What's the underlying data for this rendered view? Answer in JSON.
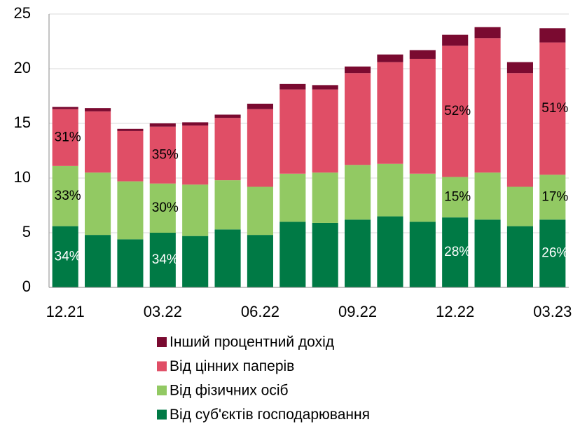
{
  "chart_data": {
    "type": "stacked_bar",
    "categories": [
      "12.21",
      null,
      null,
      "03.22",
      null,
      null,
      "06.22",
      null,
      null,
      "09.22",
      null,
      null,
      "12.22",
      null,
      null,
      "03.23"
    ],
    "series": [
      {
        "name": "Від суб'єктів господарювання",
        "color": "#007a45",
        "label_color": "#ffffff",
        "values": [
          5.6,
          4.8,
          4.4,
          5.0,
          4.7,
          5.3,
          4.8,
          6.0,
          5.9,
          6.2,
          6.5,
          6.0,
          6.4,
          6.2,
          5.6,
          6.2
        ]
      },
      {
        "name": "Від фізичних осіб",
        "color": "#92c963",
        "label_color": "#000000",
        "values": [
          5.5,
          5.7,
          5.3,
          4.5,
          4.7,
          4.5,
          4.4,
          4.4,
          4.6,
          5.0,
          4.8,
          4.4,
          3.7,
          4.3,
          3.6,
          4.1
        ]
      },
      {
        "name": "Від цінних паперів",
        "color": "#e04e66",
        "label_color": "#000000",
        "values": [
          5.2,
          5.6,
          4.6,
          5.2,
          5.4,
          5.7,
          7.1,
          7.7,
          7.6,
          8.4,
          9.3,
          10.5,
          12.0,
          12.3,
          10.4,
          12.1
        ]
      },
      {
        "name": "Інший процентний дохід",
        "color": "#7a0a30",
        "label_color": "#000000",
        "values": [
          0.2,
          0.3,
          0.2,
          0.3,
          0.3,
          0.3,
          0.5,
          0.5,
          0.4,
          0.6,
          0.7,
          0.8,
          1.0,
          1.0,
          1.0,
          1.3
        ]
      }
    ],
    "annotations": [
      {
        "series": 0,
        "category": "12.21",
        "text": "34%"
      },
      {
        "series": 1,
        "category": "12.21",
        "text": "33%"
      },
      {
        "series": 2,
        "category": "12.21",
        "text": "31%"
      },
      {
        "series": 0,
        "category": "03.22",
        "text": "34%"
      },
      {
        "series": 1,
        "category": "03.22",
        "text": "30%"
      },
      {
        "series": 2,
        "category": "03.22",
        "text": "35%"
      },
      {
        "series": 0,
        "category": "12.22",
        "text": "28%"
      },
      {
        "series": 1,
        "category": "12.22",
        "text": "15%"
      },
      {
        "series": 2,
        "category": "12.22",
        "text": "52%"
      },
      {
        "series": 0,
        "category": "03.23",
        "text": "26%"
      },
      {
        "series": 1,
        "category": "03.23",
        "text": "17%"
      },
      {
        "series": 2,
        "category": "03.23",
        "text": "51%"
      }
    ],
    "ylim": [
      0,
      25
    ],
    "yticks": [
      0,
      5,
      10,
      15,
      20,
      25
    ],
    "grid": true,
    "legend": "bottom"
  }
}
